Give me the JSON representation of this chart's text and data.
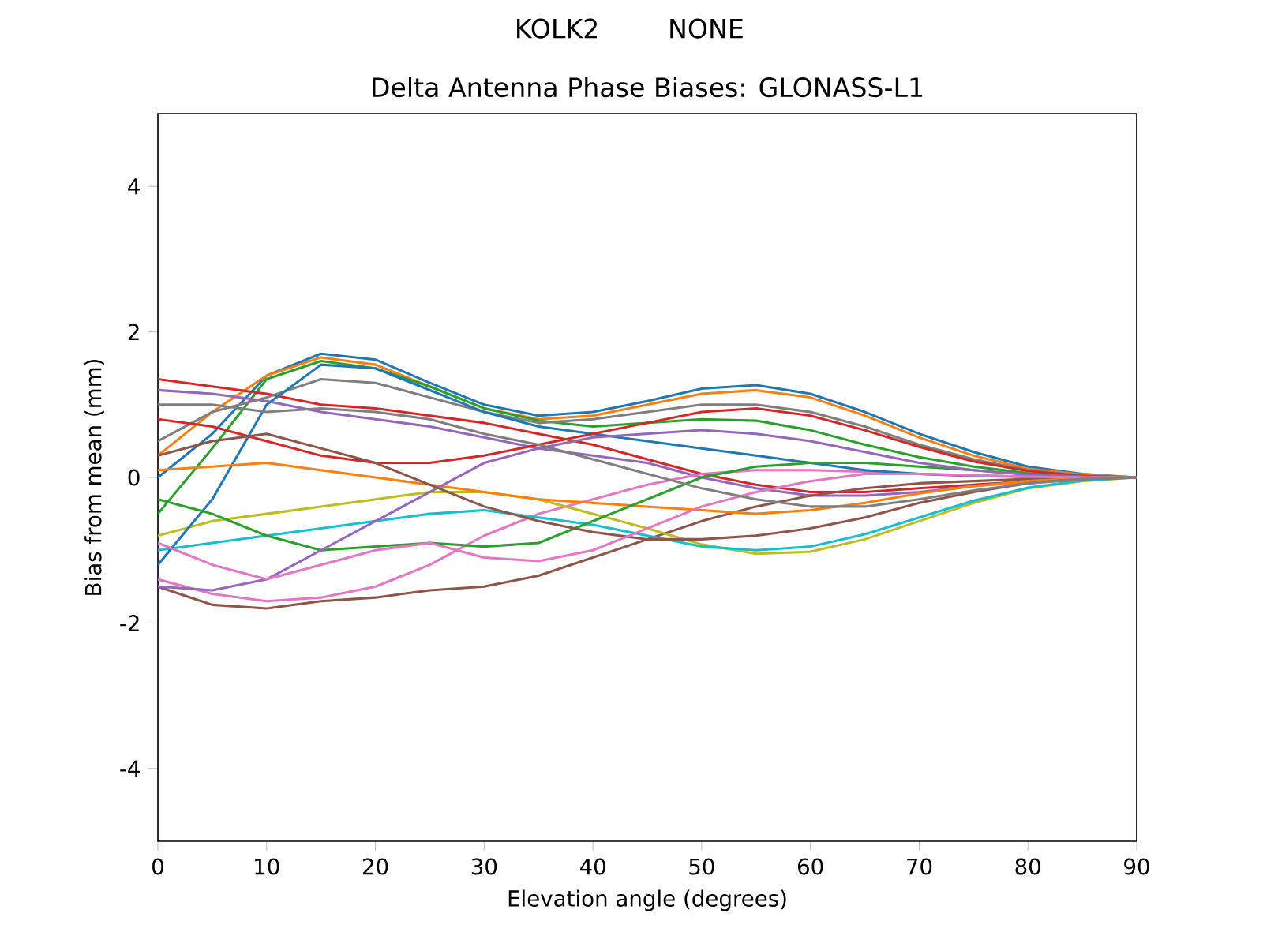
{
  "chart_data": {
    "type": "line",
    "title": "Delta Antenna Phase Biases: GLONASS-L1",
    "annotations": [
      "KOLK2",
      "NONE"
    ],
    "xlabel": "Elevation angle (degrees)",
    "ylabel": "Bias from mean (mm)",
    "x": [
      0,
      5,
      10,
      15,
      20,
      25,
      30,
      35,
      40,
      45,
      50,
      55,
      60,
      65,
      70,
      75,
      80,
      85,
      90
    ],
    "xlim": [
      0,
      90
    ],
    "ylim": [
      -5,
      5
    ],
    "xticks": [
      0,
      10,
      20,
      30,
      40,
      50,
      60,
      70,
      80,
      90
    ],
    "yticks": [
      -4,
      -2,
      0,
      2,
      4
    ],
    "series": [
      {
        "color": "#1f77b4",
        "values": [
          0.0,
          0.6,
          1.4,
          1.7,
          1.62,
          1.3,
          1.0,
          0.85,
          0.9,
          1.05,
          1.22,
          1.27,
          1.15,
          0.9,
          0.6,
          0.35,
          0.15,
          0.05,
          0
        ]
      },
      {
        "color": "#ff7f0e",
        "values": [
          0.3,
          0.9,
          1.4,
          1.65,
          1.55,
          1.25,
          0.95,
          0.8,
          0.85,
          1.0,
          1.15,
          1.2,
          1.1,
          0.85,
          0.55,
          0.3,
          0.12,
          0.04,
          0
        ]
      },
      {
        "color": "#2ca02c",
        "values": [
          -0.5,
          0.4,
          1.35,
          1.6,
          1.5,
          1.25,
          0.95,
          0.78,
          0.7,
          0.75,
          0.8,
          0.78,
          0.65,
          0.45,
          0.28,
          0.15,
          0.06,
          0.02,
          0
        ]
      },
      {
        "color": "#d62728",
        "values": [
          1.35,
          1.25,
          1.15,
          1.0,
          0.95,
          0.85,
          0.75,
          0.6,
          0.45,
          0.25,
          0.05,
          -0.1,
          -0.2,
          -0.2,
          -0.15,
          -0.1,
          -0.05,
          -0.02,
          0
        ]
      },
      {
        "color": "#9467bd",
        "values": [
          1.2,
          1.15,
          1.05,
          0.9,
          0.8,
          0.7,
          0.55,
          0.4,
          0.3,
          0.2,
          0.0,
          -0.15,
          -0.25,
          -0.25,
          -0.2,
          -0.12,
          -0.06,
          -0.02,
          0
        ]
      },
      {
        "color": "#8c564b",
        "values": [
          -1.5,
          -1.75,
          -1.8,
          -1.7,
          -1.65,
          -1.55,
          -1.5,
          -1.35,
          -1.1,
          -0.85,
          -0.6,
          -0.4,
          -0.25,
          -0.15,
          -0.08,
          -0.05,
          -0.02,
          -0.01,
          0
        ]
      },
      {
        "color": "#e377c2",
        "values": [
          -1.4,
          -1.6,
          -1.7,
          -1.65,
          -1.5,
          -1.2,
          -0.8,
          -0.5,
          -0.3,
          -0.1,
          0.05,
          0.1,
          0.1,
          0.08,
          0.05,
          0.03,
          0.01,
          0,
          0
        ]
      },
      {
        "color": "#7f7f7f",
        "values": [
          0.5,
          0.9,
          1.1,
          1.35,
          1.3,
          1.1,
          0.9,
          0.75,
          0.8,
          0.9,
          1.0,
          1.0,
          0.9,
          0.7,
          0.45,
          0.25,
          0.1,
          0.03,
          0
        ]
      },
      {
        "color": "#bcbd22",
        "values": [
          -0.8,
          -0.6,
          -0.5,
          -0.4,
          -0.3,
          -0.2,
          -0.2,
          -0.3,
          -0.5,
          -0.7,
          -0.92,
          -1.05,
          -1.02,
          -0.85,
          -0.6,
          -0.35,
          -0.15,
          -0.05,
          0
        ]
      },
      {
        "color": "#17becf",
        "values": [
          -1.0,
          -0.9,
          -0.8,
          -0.7,
          -0.6,
          -0.5,
          -0.45,
          -0.55,
          -0.65,
          -0.8,
          -0.95,
          -1.0,
          -0.95,
          -0.78,
          -0.55,
          -0.32,
          -0.14,
          -0.04,
          0
        ]
      },
      {
        "color": "#1f77b4",
        "values": [
          -1.2,
          -0.3,
          1.0,
          1.55,
          1.5,
          1.2,
          0.9,
          0.7,
          0.6,
          0.5,
          0.4,
          0.3,
          0.2,
          0.1,
          0.05,
          0.02,
          0.01,
          0,
          0
        ]
      },
      {
        "color": "#ff7f0e",
        "values": [
          0.1,
          0.15,
          0.2,
          0.1,
          0.0,
          -0.1,
          -0.2,
          -0.3,
          -0.35,
          -0.4,
          -0.45,
          -0.5,
          -0.45,
          -0.35,
          -0.22,
          -0.12,
          -0.05,
          -0.01,
          0
        ]
      },
      {
        "color": "#2ca02c",
        "values": [
          -0.3,
          -0.5,
          -0.8,
          -1.0,
          -0.95,
          -0.9,
          -0.95,
          -0.9,
          -0.6,
          -0.3,
          0.0,
          0.15,
          0.2,
          0.2,
          0.15,
          0.1,
          0.04,
          0.01,
          0
        ]
      },
      {
        "color": "#d62728",
        "values": [
          0.8,
          0.7,
          0.5,
          0.3,
          0.2,
          0.2,
          0.3,
          0.45,
          0.6,
          0.75,
          0.9,
          0.95,
          0.85,
          0.65,
          0.42,
          0.22,
          0.09,
          0.02,
          0
        ]
      },
      {
        "color": "#9467bd",
        "values": [
          -1.5,
          -1.55,
          -1.4,
          -1.0,
          -0.6,
          -0.2,
          0.2,
          0.4,
          0.55,
          0.6,
          0.65,
          0.6,
          0.5,
          0.35,
          0.2,
          0.1,
          0.04,
          0.01,
          0
        ]
      },
      {
        "color": "#8c564b",
        "values": [
          0.3,
          0.5,
          0.6,
          0.4,
          0.2,
          -0.1,
          -0.4,
          -0.6,
          -0.75,
          -0.85,
          -0.85,
          -0.8,
          -0.7,
          -0.55,
          -0.35,
          -0.2,
          -0.08,
          -0.02,
          0
        ]
      },
      {
        "color": "#e377c2",
        "values": [
          -0.9,
          -1.2,
          -1.4,
          -1.2,
          -1.0,
          -0.9,
          -1.1,
          -1.15,
          -1.0,
          -0.7,
          -0.4,
          -0.2,
          -0.05,
          0.05,
          0.05,
          0.03,
          0.01,
          0,
          0
        ]
      },
      {
        "color": "#7f7f7f",
        "values": [
          1.0,
          1.0,
          0.9,
          0.95,
          0.9,
          0.8,
          0.6,
          0.45,
          0.25,
          0.05,
          -0.15,
          -0.3,
          -0.4,
          -0.4,
          -0.3,
          -0.18,
          -0.08,
          -0.02,
          0
        ]
      }
    ]
  }
}
